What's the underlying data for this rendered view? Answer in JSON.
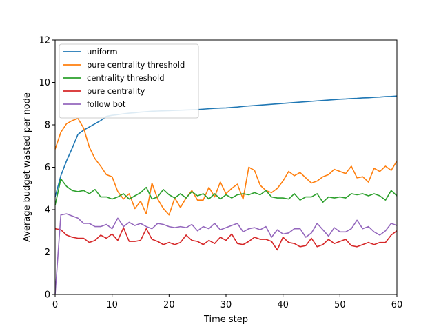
{
  "chart_data": {
    "type": "line",
    "xlabel": "Time step",
    "ylabel": "Average budget wasted per node",
    "xlim": [
      0,
      60
    ],
    "ylim": [
      0,
      12
    ],
    "xticks": [
      "0",
      "10",
      "20",
      "30",
      "40",
      "50",
      "60"
    ],
    "yticks": [
      "0",
      "2",
      "4",
      "6",
      "8",
      "10",
      "12"
    ],
    "grid": false,
    "legend_position": "top-left",
    "x": [
      0,
      1,
      2,
      3,
      4,
      5,
      6,
      7,
      8,
      9,
      10,
      11,
      12,
      13,
      14,
      15,
      16,
      17,
      18,
      19,
      20,
      21,
      22,
      23,
      24,
      25,
      26,
      27,
      28,
      29,
      30,
      31,
      32,
      33,
      34,
      35,
      36,
      37,
      38,
      39,
      40,
      41,
      42,
      43,
      44,
      45,
      46,
      47,
      48,
      49,
      50,
      51,
      52,
      53,
      54,
      55,
      56,
      57,
      58,
      59,
      60
    ],
    "series": [
      {
        "name": "uniform",
        "color": "#1f77b4",
        "values": [
          4.6,
          5.6,
          6.3,
          6.9,
          7.55,
          7.75,
          7.9,
          8.05,
          8.2,
          8.4,
          8.45,
          8.48,
          8.52,
          8.55,
          8.57,
          8.6,
          8.62,
          8.64,
          8.65,
          8.66,
          8.67,
          8.68,
          8.69,
          8.7,
          8.71,
          8.72,
          8.74,
          8.76,
          8.78,
          8.79,
          8.8,
          8.82,
          8.84,
          8.87,
          8.89,
          8.91,
          8.93,
          8.95,
          8.97,
          8.99,
          9.01,
          9.03,
          9.05,
          9.07,
          9.09,
          9.11,
          9.13,
          9.15,
          9.17,
          9.19,
          9.21,
          9.22,
          9.24,
          9.25,
          9.27,
          9.28,
          9.3,
          9.31,
          9.33,
          9.34,
          9.36
        ]
      },
      {
        "name": "pure centrality threshold",
        "color": "#ff7f0e",
        "values": [
          6.85,
          7.65,
          8.05,
          8.2,
          8.3,
          7.85,
          6.95,
          6.4,
          6.05,
          5.65,
          5.55,
          4.85,
          4.5,
          4.75,
          4.05,
          4.4,
          3.8,
          5.25,
          4.5,
          4.05,
          3.75,
          4.55,
          4.1,
          4.55,
          4.9,
          4.45,
          4.45,
          5.05,
          4.6,
          5.3,
          4.75,
          5.0,
          5.2,
          4.5,
          6.0,
          5.85,
          5.15,
          4.9,
          4.8,
          5.0,
          5.35,
          5.8,
          5.6,
          5.75,
          5.5,
          5.25,
          5.35,
          5.55,
          5.65,
          5.9,
          5.8,
          5.7,
          6.05,
          5.5,
          5.55,
          5.3,
          5.95,
          5.8,
          6.05,
          5.85,
          6.3
        ]
      },
      {
        "name": "centrality threshold",
        "color": "#2ca02c",
        "values": [
          4.2,
          5.45,
          5.1,
          4.9,
          4.85,
          4.9,
          4.75,
          4.95,
          4.6,
          4.6,
          4.5,
          4.6,
          4.75,
          4.5,
          4.65,
          4.8,
          5.05,
          4.5,
          4.6,
          4.95,
          4.7,
          4.55,
          4.75,
          4.55,
          4.85,
          4.65,
          4.75,
          4.5,
          4.75,
          4.5,
          4.7,
          4.55,
          4.7,
          4.75,
          4.7,
          4.8,
          4.7,
          4.9,
          4.6,
          4.55,
          4.55,
          4.5,
          4.75,
          4.45,
          4.6,
          4.6,
          4.75,
          4.35,
          4.6,
          4.55,
          4.6,
          4.55,
          4.75,
          4.7,
          4.75,
          4.65,
          4.75,
          4.65,
          4.45,
          4.9,
          4.65
        ]
      },
      {
        "name": "pure centrality",
        "color": "#d62728",
        "values": [
          3.1,
          3.05,
          2.8,
          2.7,
          2.65,
          2.65,
          2.45,
          2.55,
          2.8,
          2.65,
          2.85,
          2.55,
          3.15,
          2.5,
          2.5,
          2.55,
          3.1,
          2.6,
          2.5,
          2.35,
          2.45,
          2.35,
          2.45,
          2.8,
          2.55,
          2.5,
          2.35,
          2.55,
          2.4,
          2.7,
          2.55,
          2.85,
          2.4,
          2.35,
          2.5,
          2.7,
          2.6,
          2.6,
          2.5,
          2.1,
          2.7,
          2.45,
          2.4,
          2.25,
          2.3,
          2.65,
          2.25,
          2.35,
          2.6,
          2.4,
          2.5,
          2.6,
          2.3,
          2.25,
          2.35,
          2.45,
          2.35,
          2.45,
          2.45,
          2.8,
          3.0
        ]
      },
      {
        "name": "follow bot",
        "color": "#9467bd",
        "values": [
          0.0,
          3.75,
          3.8,
          3.7,
          3.6,
          3.35,
          3.35,
          3.2,
          3.2,
          3.3,
          3.1,
          3.6,
          3.2,
          3.4,
          3.25,
          3.35,
          3.2,
          3.1,
          3.35,
          3.3,
          3.2,
          3.15,
          3.2,
          3.15,
          3.3,
          3.0,
          3.2,
          3.1,
          3.35,
          3.05,
          3.15,
          3.25,
          3.35,
          2.95,
          3.1,
          3.15,
          3.05,
          3.2,
          2.7,
          3.05,
          2.85,
          2.9,
          3.1,
          3.1,
          2.7,
          2.9,
          3.35,
          3.05,
          2.75,
          3.15,
          2.95,
          2.95,
          3.1,
          3.5,
          3.1,
          3.2,
          2.95,
          2.8,
          3.0,
          3.35,
          3.25
        ]
      }
    ]
  }
}
